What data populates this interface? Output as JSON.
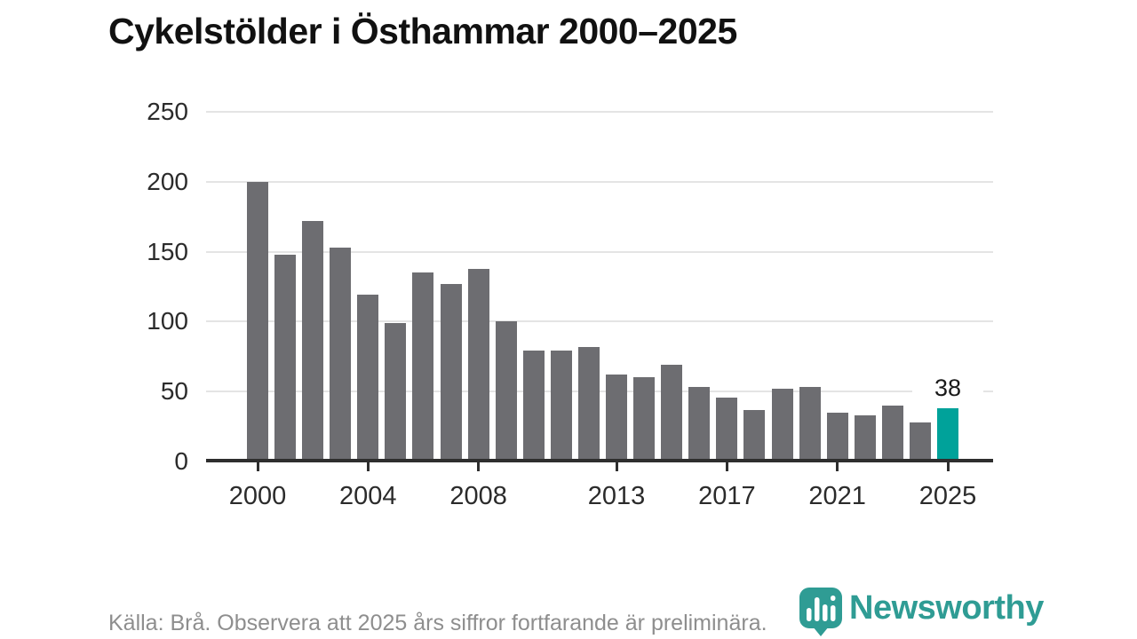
{
  "title": "Cykelstölder i Östhammar 2000–2025",
  "chart_data": {
    "type": "bar",
    "title": "Cykelstölder i Östhammar 2000–2025",
    "x": [
      2000,
      2001,
      2002,
      2003,
      2004,
      2005,
      2006,
      2007,
      2008,
      2009,
      2010,
      2011,
      2012,
      2013,
      2014,
      2015,
      2016,
      2017,
      2018,
      2019,
      2020,
      2021,
      2022,
      2023,
      2024,
      2025
    ],
    "values": [
      200,
      148,
      172,
      153,
      119,
      99,
      135,
      127,
      138,
      100,
      79,
      79,
      82,
      62,
      60,
      69,
      53,
      46,
      37,
      52,
      53,
      35,
      33,
      40,
      28,
      38
    ],
    "highlight_year": 2025,
    "highlight_value": 38,
    "annotation_label": "38",
    "ylim": [
      0,
      250
    ],
    "yticks": [
      0,
      50,
      100,
      150,
      200,
      250
    ],
    "xtick_years": [
      2000,
      2004,
      2008,
      2013,
      2017,
      2021,
      2025
    ],
    "grid": "horizontal",
    "legend": "none",
    "bar_color": "#6d6d71",
    "highlight_color": "#00a29a"
  },
  "footer": {
    "source_text": "Källa: Brå. Observera att 2025 års siffror fortfarande är preliminära."
  },
  "logo": {
    "text": "Newsworthy",
    "color": "#2f9c94",
    "icon": "newsworthy-chart-bubble-icon"
  }
}
